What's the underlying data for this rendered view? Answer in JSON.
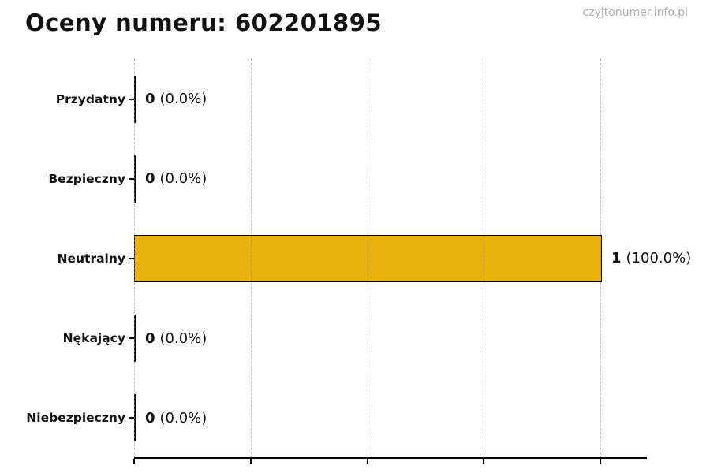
{
  "title": "Oceny numeru: 602201895",
  "watermark": "czyjtonumer.info.pl",
  "chart_data": {
    "type": "bar",
    "orientation": "horizontal",
    "title": "Oceny numeru: 602201895",
    "categories": [
      "Przydatny",
      "Bezpieczny",
      "Neutralny",
      "Nękający",
      "Niebezpieczny"
    ],
    "values": [
      0,
      0,
      1,
      0,
      0
    ],
    "value_labels": [
      "0",
      "0",
      "1",
      "0",
      "0"
    ],
    "percent_labels": [
      "(0.0%)",
      "(0.0%)",
      "(100.0%)",
      "(0.0%)",
      "(0.0%)"
    ],
    "xlabel": "",
    "ylabel": "",
    "xlim": [
      0,
      1.1
    ],
    "grid": true,
    "gridline_values": [
      0,
      0.25,
      0.5,
      0.75,
      1.0
    ],
    "x_tick_labels_visible": false,
    "colors": {
      "bar_fill": "#e9b10e",
      "bar_edge": "#000000",
      "gridline": "#c8c8c8",
      "axis": "#000000",
      "text": "#111111",
      "watermark": "#b0b0b0"
    }
  }
}
